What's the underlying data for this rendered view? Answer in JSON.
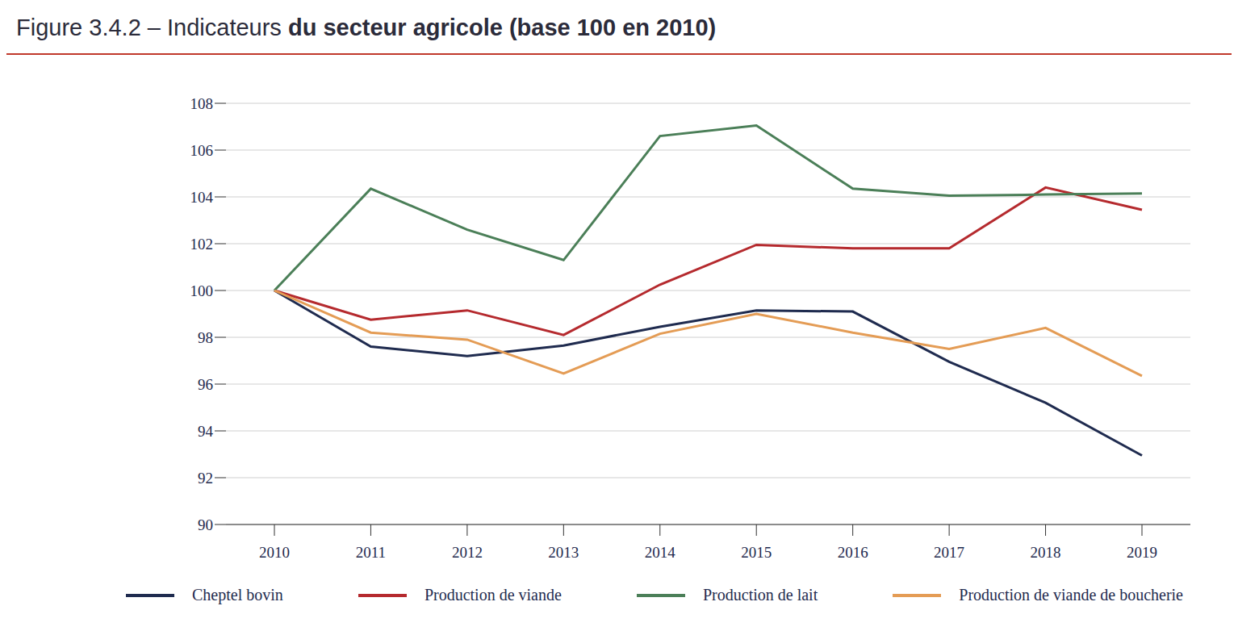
{
  "chart_data": {
    "type": "line",
    "title": "Figure 3.4.2 – Indicateurs du secteur agricole (base 100 en 2010)",
    "categories": [
      "2010",
      "2011",
      "2012",
      "2013",
      "2014",
      "2015",
      "2016",
      "2017",
      "2018",
      "2019"
    ],
    "series": [
      {
        "name": "Cheptel bovin",
        "color": "#1f2b4f",
        "values": [
          100,
          97.6,
          97.2,
          97.65,
          98.45,
          99.15,
          99.1,
          96.95,
          95.2,
          92.95
        ]
      },
      {
        "name": "Production de viande",
        "color": "#b52a2e",
        "values": [
          100,
          98.75,
          99.15,
          98.1,
          100.25,
          101.95,
          101.8,
          101.8,
          104.4,
          103.45
        ]
      },
      {
        "name": "Production de lait",
        "color": "#4b7f58",
        "values": [
          100,
          104.35,
          102.6,
          101.3,
          106.6,
          107.05,
          104.35,
          104.05,
          104.1,
          104.15
        ]
      },
      {
        "name": "Production de viande de boucherie",
        "color": "#e49c55",
        "values": [
          100,
          98.2,
          97.9,
          96.45,
          98.15,
          99.0,
          98.2,
          97.5,
          98.4,
          96.35
        ]
      }
    ],
    "ylim": [
      90,
      108
    ],
    "yticks": [
      90,
      92,
      94,
      96,
      98,
      100,
      102,
      104,
      106,
      108
    ],
    "grid": true,
    "legend": "bottom"
  }
}
